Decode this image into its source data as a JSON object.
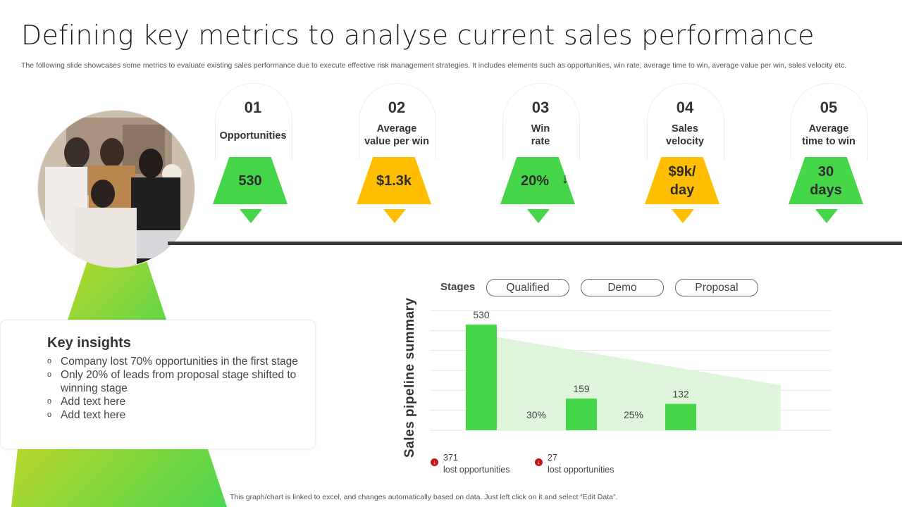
{
  "header": {
    "title": "Defining key metrics to analyse current sales performance",
    "subtitle": "The following slide showcases some metrics to evaluate existing sales performance due to execute effective risk management strategies. It includes elements such as opportunities, win rate, average time to win, average value per win, sales velocity etc."
  },
  "colors": {
    "green": "#45d64a",
    "yellow": "#ffbf00",
    "light_green": "#dff6dc",
    "dark_line": "#3b3b3b"
  },
  "metrics": [
    {
      "num": "01",
      "label": "Opportunities",
      "value": "530",
      "color": "#45d64a"
    },
    {
      "num": "02",
      "label": "Average\nvalue per win",
      "value": "$1.3k",
      "color": "#ffbf00"
    },
    {
      "num": "03",
      "label": "Win\nrate",
      "value": "20%",
      "color": "#45d64a",
      "icon": "down-arrow-icon",
      "arrow": "↓"
    },
    {
      "num": "04",
      "label": "Sales\nvelocity",
      "value": "$9k/\nday",
      "color": "#ffbf00"
    },
    {
      "num": "05",
      "label": "Average\ntime to win",
      "value": "30\ndays",
      "color": "#45d64a"
    }
  ],
  "insights": {
    "title": "Key insights",
    "bullet": "o",
    "items": [
      "Company lost 70% opportunities in the first stage",
      "Only 20% of leads from proposal stage shifted to winning stage",
      "Add text here",
      "Add text here"
    ]
  },
  "chart": {
    "stages_label": "Stages",
    "stages": [
      "Qualified",
      "Demo",
      "Proposal"
    ],
    "vertical_title": "Sales pipeline summary"
  },
  "chart_data": {
    "type": "bar",
    "categories": [
      "Qualified",
      "Demo",
      "Proposal"
    ],
    "values": [
      530,
      159,
      132
    ],
    "conversion_labels": [
      "30%",
      "25%"
    ],
    "ylim": [
      0,
      600
    ],
    "grid": true
  },
  "lost": [
    {
      "count": "371",
      "text": "lost opportunities",
      "icon": "down-alert-icon"
    },
    {
      "count": "27",
      "text": "lost opportunities",
      "icon": "down-alert-icon"
    }
  ],
  "footer": "This graph/chart is linked to excel, and changes automatically based on data. Just left click on it and select “Edit Data”."
}
